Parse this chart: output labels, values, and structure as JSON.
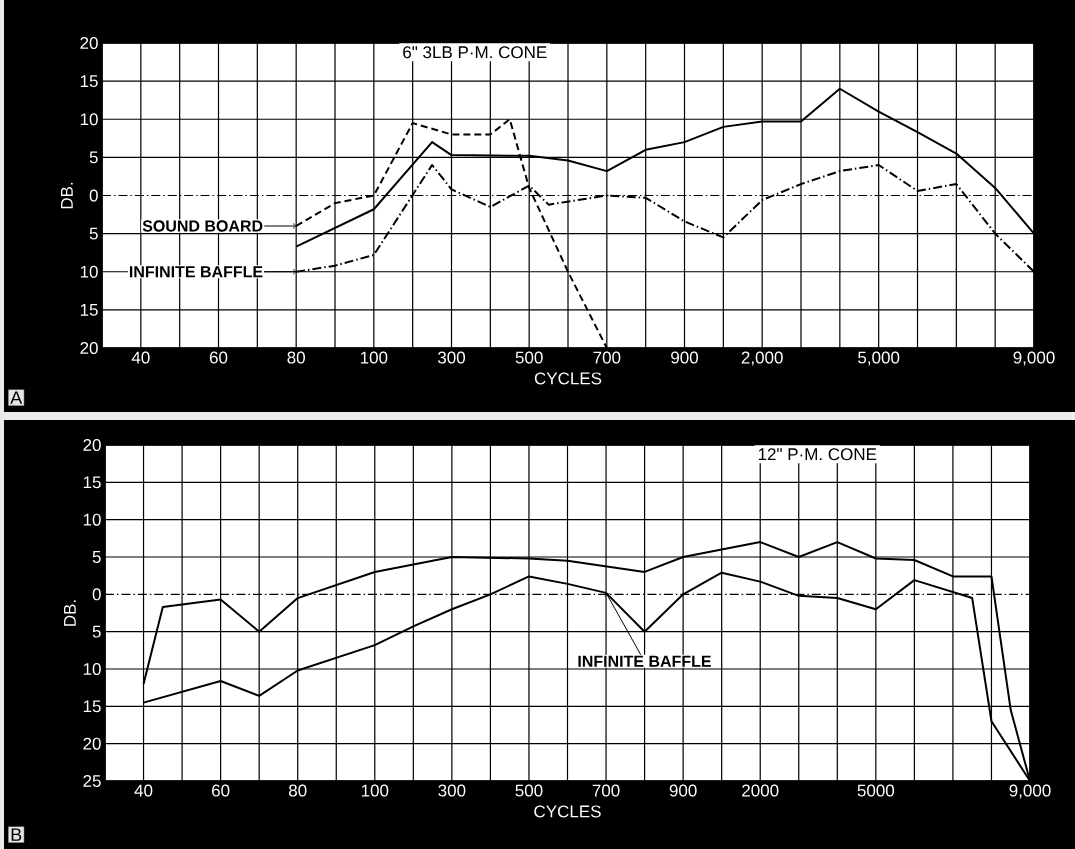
{
  "chart_data": [
    {
      "type": "line",
      "title": "6\" 3LB P·M. CONE",
      "xlabel": "CYCLES",
      "ylabel": "DB.",
      "grid": true,
      "legend": "left",
      "annotations": [
        "A"
      ],
      "categories": [
        null,
        null,
        "40",
        null,
        null,
        null,
        "60",
        null,
        null,
        null,
        "80",
        null,
        null,
        null,
        "100",
        null,
        null,
        null,
        "300",
        null,
        null,
        null,
        "500",
        null,
        null,
        null,
        "700",
        null,
        null,
        null,
        "900",
        null,
        null,
        null,
        "2,000",
        null,
        null,
        null,
        null,
        null,
        "5,000",
        null,
        null,
        null,
        null,
        null,
        null,
        null,
        "9,000"
      ],
      "ylim": [
        -20,
        20
      ],
      "yticks": [
        20,
        15,
        10,
        5,
        0,
        {
          "value": -5,
          "label": "5"
        },
        {
          "value": -10,
          "label": "10"
        },
        {
          "value": -15,
          "label": "15"
        },
        {
          "value": -20,
          "label": "20"
        }
      ],
      "ref_lines": [
        {
          "axis": "y",
          "value": 0,
          "line_style": "dashdot",
          "color": "#000000"
        }
      ],
      "series": [
        {
          "name": "SOUND BOARD",
          "color": "#000000",
          "line_style": "dashed",
          "values": [
            null,
            null,
            null,
            null,
            null,
            null,
            null,
            null,
            null,
            null,
            -4,
            null,
            -1,
            null,
            0,
            null,
            9.5,
            null,
            8,
            null,
            8,
            10,
            1,
            null,
            -10,
            null,
            -20,
            null,
            null,
            null,
            null,
            null,
            null,
            null,
            null,
            null,
            null,
            null,
            null,
            null,
            null,
            null,
            null,
            null,
            null,
            null,
            null,
            null,
            null
          ]
        },
        {
          "color": "#000000",
          "line_style": "solid",
          "values": [
            null,
            null,
            null,
            null,
            null,
            null,
            null,
            null,
            null,
            null,
            -6.7,
            null,
            null,
            null,
            -1.8,
            null,
            null,
            7,
            5.3,
            null,
            null,
            null,
            5.2,
            null,
            4.6,
            null,
            3.2,
            null,
            6,
            null,
            7,
            null,
            9,
            null,
            9.7,
            null,
            9.7,
            null,
            14,
            null,
            11,
            null,
            8.3,
            null,
            5.5,
            null,
            1,
            null,
            -5
          ]
        },
        {
          "name": "INFINITE BAFFLE",
          "color": "#000000",
          "line_style": "dashdot",
          "values": [
            null,
            null,
            null,
            null,
            null,
            null,
            null,
            null,
            null,
            null,
            -10,
            null,
            -9.2,
            null,
            -7.8,
            null,
            null,
            4,
            0.8,
            null,
            -1.5,
            null,
            1.3,
            -1.2,
            null,
            null,
            0,
            null,
            -0.3,
            null,
            -3.4,
            null,
            -5.5,
            null,
            -0.6,
            null,
            1.5,
            null,
            3.2,
            null,
            4,
            null,
            0.6,
            null,
            1.5,
            null,
            -5,
            null,
            -10
          ]
        }
      ]
    },
    {
      "type": "line",
      "title": "12\" P·M. CONE",
      "xlabel": "CYCLES",
      "ylabel": "DB.",
      "grid": true,
      "annotations": [
        "B"
      ],
      "categories": [
        null,
        null,
        "40",
        null,
        null,
        null,
        "60",
        null,
        null,
        null,
        "80",
        null,
        null,
        null,
        "100",
        null,
        null,
        null,
        "300",
        null,
        null,
        null,
        "500",
        null,
        null,
        null,
        "700",
        null,
        null,
        null,
        "900",
        null,
        null,
        null,
        "2000",
        null,
        null,
        null,
        null,
        null,
        "5000",
        null,
        null,
        null,
        null,
        null,
        null,
        null,
        "9,000"
      ],
      "ylim": [
        -25,
        20
      ],
      "yticks": [
        20,
        15,
        10,
        5,
        0,
        {
          "value": -5,
          "label": "5"
        },
        {
          "value": -10,
          "label": "10"
        },
        {
          "value": -15,
          "label": "15"
        },
        {
          "value": -20,
          "label": "20"
        },
        {
          "value": -25,
          "label": "25"
        }
      ],
      "ref_lines": [
        {
          "axis": "y",
          "value": 0,
          "line_style": "dashdot",
          "color": "#000000"
        }
      ],
      "series": [
        {
          "color": "#000000",
          "line_style": "solid",
          "values": [
            null,
            null,
            -12,
            -1.7,
            null,
            null,
            -0.7,
            null,
            -5,
            null,
            -0.5,
            null,
            null,
            null,
            3,
            null,
            4,
            null,
            5,
            null,
            null,
            null,
            4.8,
            null,
            4.5,
            null,
            null,
            null,
            3,
            null,
            5,
            null,
            6,
            null,
            7,
            null,
            5,
            null,
            7,
            null,
            4.8,
            null,
            4.6,
            null,
            2.4,
            null,
            2.4,
            -15.5,
            -25
          ]
        },
        {
          "name": "INFINITE BAFFLE",
          "color": "#000000",
          "line_style": "solid",
          "values": [
            null,
            null,
            -14.5,
            null,
            null,
            null,
            -11.6,
            null,
            -13.6,
            null,
            -10.2,
            null,
            null,
            null,
            -6.8,
            null,
            -4.3,
            null,
            -2,
            null,
            0,
            null,
            2.4,
            null,
            1.4,
            null,
            0.2,
            null,
            -5,
            null,
            0,
            null,
            2.9,
            null,
            1.7,
            null,
            -0.2,
            null,
            -0.5,
            null,
            -2,
            null,
            1.9,
            null,
            null,
            -0.5,
            -17,
            null,
            -25
          ]
        }
      ]
    }
  ]
}
